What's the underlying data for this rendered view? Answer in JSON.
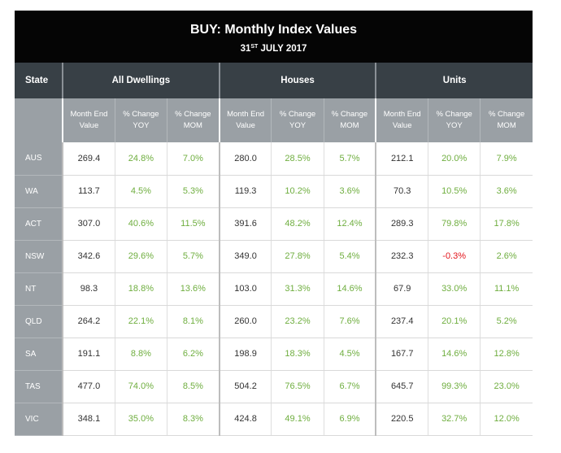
{
  "title": "BUY: Monthly Index Values",
  "subtitle_prefix": "31",
  "subtitle_sup": "ST",
  "subtitle_suffix": " JULY 2017",
  "headers": {
    "state": "State",
    "groups": [
      "All Dwellings",
      "Houses",
      "Units"
    ],
    "sub": [
      "Month End Value",
      "% Change YOY",
      "% Change MOM"
    ]
  },
  "colors": {
    "positive": "#6fae3f",
    "negative": "#e3141b",
    "header_dark": "#384046",
    "header_grey": "#9aa0a5"
  },
  "rows": [
    {
      "state": "AUS",
      "cells": [
        "269.4",
        "24.8%",
        "7.0%",
        "280.0",
        "28.5%",
        "5.7%",
        "212.1",
        "20.0%",
        "7.9%"
      ]
    },
    {
      "state": "WA",
      "cells": [
        "113.7",
        "4.5%",
        "5.3%",
        "119.3",
        "10.2%",
        "3.6%",
        "70.3",
        "10.5%",
        "3.6%"
      ]
    },
    {
      "state": "ACT",
      "cells": [
        "307.0",
        "40.6%",
        "11.5%",
        "391.6",
        "48.2%",
        "12.4%",
        "289.3",
        "79.8%",
        "17.8%"
      ]
    },
    {
      "state": "NSW",
      "cells": [
        "342.6",
        "29.6%",
        "5.7%",
        "349.0",
        "27.8%",
        "5.4%",
        "232.3",
        "-0.3%",
        "2.6%"
      ]
    },
    {
      "state": "NT",
      "cells": [
        "98.3",
        "18.8%",
        "13.6%",
        "103.0",
        "31.3%",
        "14.6%",
        "67.9",
        "33.0%",
        "11.1%"
      ]
    },
    {
      "state": "QLD",
      "cells": [
        "264.2",
        "22.1%",
        "8.1%",
        "260.0",
        "23.2%",
        "7.6%",
        "237.4",
        "20.1%",
        "5.2%"
      ]
    },
    {
      "state": "SA",
      "cells": [
        "191.1",
        "8.8%",
        "6.2%",
        "198.9",
        "18.3%",
        "4.5%",
        "167.7",
        "14.6%",
        "12.8%"
      ]
    },
    {
      "state": "TAS",
      "cells": [
        "477.0",
        "74.0%",
        "8.5%",
        "504.2",
        "76.5%",
        "6.7%",
        "645.7",
        "99.3%",
        "23.0%"
      ]
    },
    {
      "state": "VIC",
      "cells": [
        "348.1",
        "35.0%",
        "8.3%",
        "424.8",
        "49.1%",
        "6.9%",
        "220.5",
        "32.7%",
        "12.0%"
      ]
    }
  ]
}
